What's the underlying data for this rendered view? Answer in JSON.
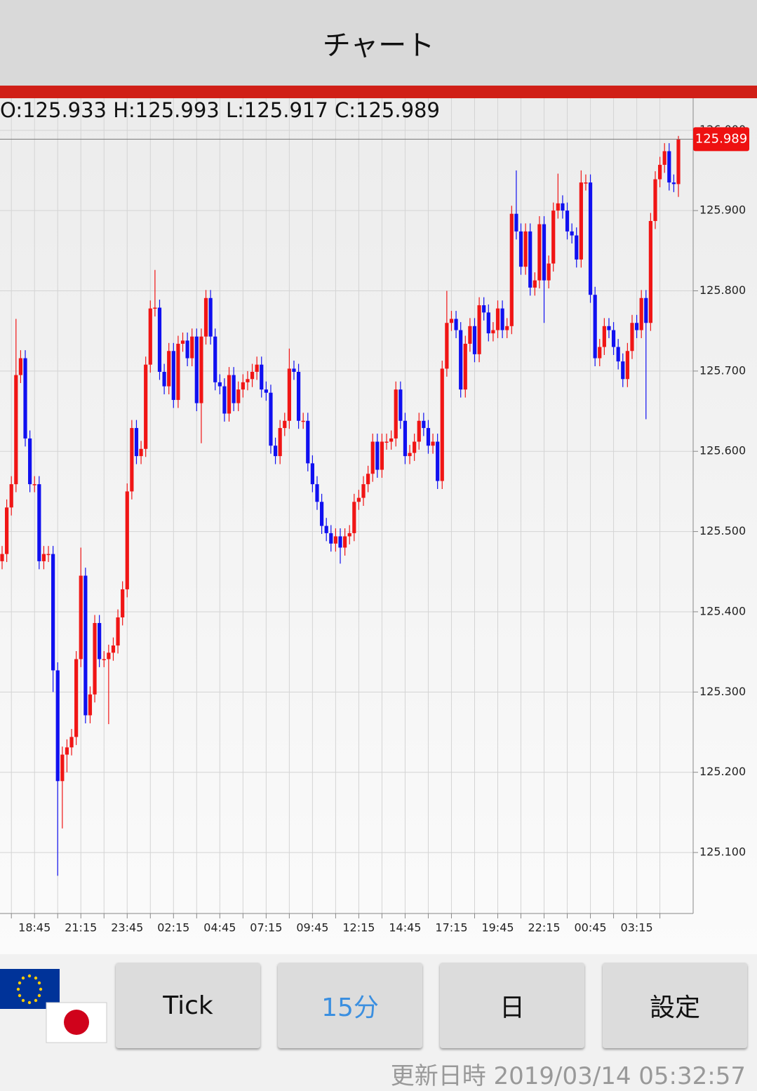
{
  "header": {
    "title": "チャート"
  },
  "chart_data": {
    "type": "candlestick",
    "ohlc_text": "O:125.933 H:125.993 L:125.917 C:125.989",
    "categories": [
      null,
      null,
      null,
      null,
      null,
      null,
      null,
      "18:45",
      null,
      null,
      null,
      null,
      null,
      null,
      null,
      null,
      null,
      "21:15",
      null,
      null,
      null,
      null,
      null,
      null,
      null,
      null,
      null,
      "23:45",
      null,
      null,
      null,
      null,
      null,
      null,
      null,
      null,
      null,
      "02:15",
      null,
      null,
      null,
      null,
      null,
      null,
      null,
      null,
      null,
      "04:45",
      null,
      null,
      null,
      null,
      null,
      null,
      null,
      null,
      null,
      "07:15",
      null,
      null,
      null,
      null,
      null,
      null,
      null,
      null,
      null,
      "09:45",
      null,
      null,
      null,
      null,
      null,
      null,
      null,
      null,
      null,
      "12:15",
      null,
      null,
      null,
      null,
      null,
      null,
      null,
      null,
      null,
      "14:45",
      null,
      null,
      null,
      null,
      null,
      null,
      null,
      null,
      null,
      "17:15",
      null,
      null,
      null,
      null,
      null,
      null,
      null,
      null,
      null,
      "19:45",
      null,
      null,
      null,
      null,
      null,
      null,
      null,
      null,
      null,
      "22:15",
      null,
      null,
      null,
      null,
      null,
      null,
      null,
      null,
      null,
      "00:45",
      null,
      null,
      null,
      null,
      null,
      null,
      null,
      null,
      null,
      "03:15",
      null,
      null,
      null,
      null,
      null,
      null,
      null,
      null,
      null
    ],
    "open": [
      125.463,
      125.472,
      125.53,
      125.559,
      125.695,
      125.716,
      125.616,
      125.559,
      125.559,
      125.463,
      125.472,
      125.472,
      125.327,
      125.189,
      125.222,
      125.231,
      125.244,
      125.341,
      125.445,
      125.271,
      125.297,
      125.386,
      125.341,
      125.341,
      125.349,
      125.358,
      125.393,
      125.428,
      125.55,
      125.629,
      125.594,
      125.603,
      125.708,
      125.778,
      125.779,
      125.699,
      125.681,
      125.725,
      125.664,
      125.734,
      125.738,
      125.716,
      125.743,
      125.66,
      125.743,
      125.791,
      125.743,
      125.686,
      125.681,
      125.647,
      125.695,
      125.66,
      125.677,
      125.686,
      125.69,
      125.699,
      125.708,
      125.677,
      125.673,
      125.607,
      125.594,
      125.629,
      125.638,
      125.703,
      125.699,
      125.638,
      125.638,
      125.585,
      125.559,
      125.537,
      125.507,
      125.498,
      125.485,
      125.494,
      125.48,
      125.494,
      125.498,
      125.537,
      125.542,
      125.559,
      125.572,
      125.612,
      125.577,
      125.612,
      125.612,
      125.616,
      125.677,
      125.638,
      125.594,
      125.598,
      125.612,
      125.638,
      125.629,
      125.607,
      125.612,
      125.563,
      125.703,
      125.76,
      125.765,
      125.751,
      125.677,
      125.734,
      125.756,
      125.721,
      125.782,
      125.773,
      125.747,
      125.751,
      125.778,
      125.751,
      125.756,
      125.896,
      125.874,
      125.83,
      125.874,
      125.804,
      125.813,
      125.883,
      125.813,
      125.834,
      125.9,
      125.909,
      125.9,
      125.874,
      125.869,
      125.839,
      125.935,
      125.935,
      125.795,
      125.716,
      125.73,
      125.756,
      125.751,
      125.73,
      125.712,
      125.69,
      125.725,
      125.76,
      125.751,
      125.791,
      125.76,
      125.887,
      125.939,
      125.957,
      125.974,
      125.935,
      125.933
    ],
    "high": [
      125.482,
      125.54,
      125.569,
      125.765,
      125.726,
      125.726,
      125.626,
      125.569,
      125.569,
      125.482,
      125.482,
      125.482,
      125.337,
      125.232,
      125.241,
      125.254,
      125.351,
      125.48,
      125.455,
      125.307,
      125.396,
      125.396,
      125.351,
      125.359,
      125.368,
      125.403,
      125.438,
      125.56,
      125.639,
      125.639,
      125.613,
      125.718,
      125.788,
      125.826,
      125.789,
      125.709,
      125.735,
      125.735,
      125.744,
      125.748,
      125.748,
      125.753,
      125.753,
      125.753,
      125.801,
      125.801,
      125.753,
      125.696,
      125.691,
      125.705,
      125.705,
      125.687,
      125.696,
      125.7,
      125.709,
      125.718,
      125.718,
      125.687,
      125.683,
      125.617,
      125.639,
      125.648,
      125.728,
      125.713,
      125.709,
      125.648,
      125.648,
      125.595,
      125.569,
      125.547,
      125.517,
      125.508,
      125.504,
      125.504,
      125.504,
      125.508,
      125.547,
      125.552,
      125.569,
      125.582,
      125.622,
      125.622,
      125.622,
      125.622,
      125.626,
      125.687,
      125.687,
      125.648,
      125.608,
      125.622,
      125.648,
      125.648,
      125.639,
      125.622,
      125.622,
      125.713,
      125.8,
      125.775,
      125.775,
      125.761,
      125.744,
      125.766,
      125.766,
      125.792,
      125.792,
      125.783,
      125.761,
      125.788,
      125.788,
      125.766,
      125.906,
      125.95,
      125.884,
      125.884,
      125.884,
      125.823,
      125.893,
      125.893,
      125.844,
      125.91,
      125.946,
      125.919,
      125.91,
      125.884,
      125.879,
      125.95,
      125.945,
      125.945,
      125.805,
      125.74,
      125.766,
      125.766,
      125.761,
      125.74,
      125.722,
      125.735,
      125.77,
      125.77,
      125.801,
      125.801,
      125.897,
      125.949,
      125.967,
      125.984,
      125.984,
      125.945,
      125.993
    ],
    "low": [
      125.453,
      125.462,
      125.52,
      125.549,
      125.685,
      125.606,
      125.549,
      125.549,
      125.453,
      125.453,
      125.462,
      125.3,
      125.071,
      125.13,
      125.2,
      125.221,
      125.234,
      125.331,
      125.261,
      125.261,
      125.287,
      125.331,
      125.331,
      125.26,
      125.339,
      125.348,
      125.383,
      125.418,
      125.54,
      125.584,
      125.584,
      125.593,
      125.698,
      125.768,
      125.689,
      125.671,
      125.671,
      125.654,
      125.654,
      125.724,
      125.706,
      125.706,
      125.65,
      125.61,
      125.733,
      125.733,
      125.676,
      125.671,
      125.637,
      125.637,
      125.65,
      125.65,
      125.667,
      125.676,
      125.68,
      125.689,
      125.667,
      125.663,
      125.597,
      125.584,
      125.584,
      125.619,
      125.628,
      125.689,
      125.628,
      125.628,
      125.575,
      125.549,
      125.527,
      125.497,
      125.488,
      125.475,
      125.475,
      125.46,
      125.47,
      125.484,
      125.488,
      125.527,
      125.532,
      125.549,
      125.562,
      125.567,
      125.567,
      125.602,
      125.602,
      125.606,
      125.628,
      125.584,
      125.584,
      125.588,
      125.602,
      125.619,
      125.597,
      125.597,
      125.553,
      125.553,
      125.693,
      125.75,
      125.741,
      125.667,
      125.667,
      125.724,
      125.711,
      125.711,
      125.763,
      125.737,
      125.737,
      125.741,
      125.741,
      125.741,
      125.746,
      125.864,
      125.82,
      125.82,
      125.794,
      125.794,
      125.803,
      125.76,
      125.803,
      125.824,
      125.89,
      125.89,
      125.864,
      125.859,
      125.829,
      125.829,
      125.925,
      125.785,
      125.706,
      125.706,
      125.72,
      125.741,
      125.72,
      125.702,
      125.68,
      125.68,
      125.715,
      125.741,
      125.741,
      125.64,
      125.75,
      125.877,
      125.929,
      125.947,
      125.925,
      125.923,
      125.917
    ],
    "close": [
      125.472,
      125.53,
      125.559,
      125.695,
      125.716,
      125.616,
      125.559,
      125.559,
      125.463,
      125.472,
      125.472,
      125.327,
      125.189,
      125.222,
      125.231,
      125.244,
      125.341,
      125.445,
      125.271,
      125.297,
      125.386,
      125.341,
      125.341,
      125.349,
      125.358,
      125.393,
      125.428,
      125.55,
      125.629,
      125.594,
      125.603,
      125.708,
      125.778,
      125.779,
      125.699,
      125.681,
      125.725,
      125.664,
      125.734,
      125.738,
      125.716,
      125.743,
      125.66,
      125.743,
      125.791,
      125.743,
      125.686,
      125.681,
      125.647,
      125.695,
      125.66,
      125.677,
      125.686,
      125.69,
      125.699,
      125.708,
      125.677,
      125.673,
      125.607,
      125.594,
      125.629,
      125.638,
      125.703,
      125.699,
      125.638,
      125.638,
      125.585,
      125.559,
      125.537,
      125.507,
      125.498,
      125.485,
      125.494,
      125.48,
      125.494,
      125.498,
      125.537,
      125.542,
      125.559,
      125.572,
      125.612,
      125.577,
      125.612,
      125.612,
      125.616,
      125.677,
      125.638,
      125.594,
      125.598,
      125.612,
      125.638,
      125.629,
      125.607,
      125.612,
      125.563,
      125.703,
      125.76,
      125.765,
      125.751,
      125.677,
      125.734,
      125.756,
      125.721,
      125.782,
      125.773,
      125.747,
      125.751,
      125.778,
      125.751,
      125.756,
      125.896,
      125.874,
      125.83,
      125.874,
      125.804,
      125.813,
      125.883,
      125.813,
      125.834,
      125.9,
      125.909,
      125.9,
      125.874,
      125.869,
      125.839,
      125.935,
      125.935,
      125.795,
      125.716,
      125.73,
      125.756,
      125.751,
      125.73,
      125.712,
      125.69,
      125.725,
      125.76,
      125.751,
      125.791,
      125.76,
      125.887,
      125.939,
      125.957,
      125.974,
      125.935,
      125.933,
      125.989
    ],
    "up_color": "#f01515",
    "down_color": "#1010f0",
    "ylim": [
      125.024,
      126.04
    ],
    "yticks": [
      {
        "value": 125.1,
        "label": "125.100"
      },
      {
        "value": 125.2,
        "label": "125.200"
      },
      {
        "value": 125.3,
        "label": "125.300"
      },
      {
        "value": 125.4,
        "label": "125.400"
      },
      {
        "value": 125.5,
        "label": "125.500"
      },
      {
        "value": 125.6,
        "label": "125.600"
      },
      {
        "value": 125.7,
        "label": "125.700"
      },
      {
        "value": 125.8,
        "label": "125.800"
      },
      {
        "value": 125.9,
        "label": "125.900"
      },
      {
        "value": 126,
        "label": "126.000"
      }
    ],
    "grid": true
  },
  "buttons": [
    "Tick",
    "15分",
    "日",
    "設定"
  ],
  "footer": {
    "updated": "更新日時 2019/03/14 05:32:57"
  }
}
